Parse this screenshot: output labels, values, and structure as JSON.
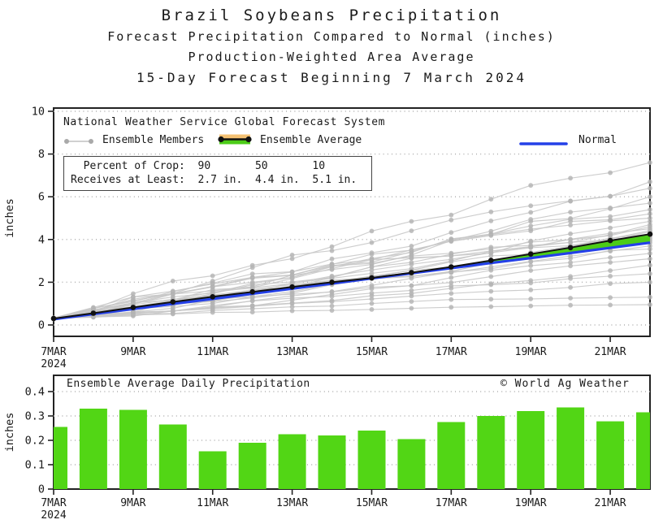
{
  "titles": {
    "line1": "Brazil Soybeans Precipitation",
    "line2": "Forecast Precipitation Compared to Normal (inches)",
    "line3": "Production-Weighted Area Average",
    "line4": "15-Day Forecast Beginning 7 March 2024"
  },
  "legend": {
    "source_line": "National Weather Service Global Forecast System",
    "entries": [
      {
        "label": "Ensemble Members",
        "swatch": "gray-line-with-dots"
      },
      {
        "label": "Ensemble Average",
        "swatch": "black-line-orange-above-green-below"
      },
      {
        "label": "Normal",
        "swatch": "blue-line"
      }
    ]
  },
  "crop_box": {
    "line1": "  Percent of Crop:  90       50       10",
    "line2": "Receives at Least:  2.7 in.  4.4 in.  5.1 in."
  },
  "colors": {
    "bar_green": "#52d615",
    "fill_green": "#4ccc18",
    "normal_blue": "#2440e8",
    "average_black": "#111111",
    "member_gray": "#c8c8c8",
    "member_dot_gray": "#b3b3b3",
    "legend_orange": "#f4c173",
    "grid_gray": "#b0b0b0",
    "axis_black": "#222222",
    "text": "#1a1a1a"
  },
  "chart_data": [
    {
      "type": "line",
      "title": "Forecast cumulative precipitation compared to normal",
      "ylabel": "inches",
      "ylim": [
        -0.55,
        10.15
      ],
      "y_ticks": [
        0,
        2,
        4,
        6,
        8,
        10
      ],
      "x_days": [
        "7MAR",
        "8MAR",
        "9MAR",
        "10MAR",
        "11MAR",
        "12MAR",
        "13MAR",
        "14MAR",
        "15MAR",
        "16MAR",
        "17MAR",
        "18MAR",
        "19MAR",
        "20MAR",
        "21MAR",
        "22MAR"
      ],
      "x_tick_labels": [
        {
          "day": 0,
          "label": "7MAR",
          "sublabel": "2024"
        },
        {
          "day": 2,
          "label": "9MAR"
        },
        {
          "day": 4,
          "label": "11MAR"
        },
        {
          "day": 6,
          "label": "13MAR"
        },
        {
          "day": 8,
          "label": "15MAR"
        },
        {
          "day": 10,
          "label": "17MAR"
        },
        {
          "day": 12,
          "label": "19MAR"
        },
        {
          "day": 14,
          "label": "21MAR"
        }
      ],
      "series": [
        {
          "name": "Ensemble Average",
          "values": [
            0.3,
            0.55,
            0.82,
            1.08,
            1.32,
            1.55,
            1.78,
            2.0,
            2.2,
            2.45,
            2.72,
            3.02,
            3.32,
            3.62,
            3.95,
            4.25
          ]
        },
        {
          "name": "Normal",
          "values": [
            0.27,
            0.51,
            0.75,
            0.99,
            1.22,
            1.46,
            1.7,
            1.94,
            2.18,
            2.42,
            2.66,
            2.9,
            3.13,
            3.37,
            3.61,
            3.85
          ]
        }
      ],
      "ensemble_members": {
        "name": "Ensemble Members",
        "count": 28,
        "start_value": 0.3,
        "end_values": [
          7.6,
          6.7,
          6.4,
          6.0,
          5.7,
          5.4,
          5.2,
          5.0,
          4.85,
          4.7,
          4.6,
          4.5,
          4.42,
          4.35,
          4.25,
          4.15,
          4.05,
          3.95,
          3.85,
          3.7,
          3.55,
          3.35,
          3.1,
          2.8,
          2.4,
          2.0,
          1.3,
          0.95
        ]
      },
      "legend_position": "top-left-inside",
      "grid": "horizontal-dotted"
    },
    {
      "type": "bar",
      "title": "Ensemble Average Daily Precipitation",
      "watermark": "© World Ag Weather",
      "ylabel": "inches",
      "ylim": [
        0,
        0.47
      ],
      "y_ticks": [
        0,
        0.1,
        0.2,
        0.3,
        0.4
      ],
      "categories": [
        "7MAR",
        "8MAR",
        "9MAR",
        "10MAR",
        "11MAR",
        "12MAR",
        "13MAR",
        "14MAR",
        "15MAR",
        "16MAR",
        "17MAR",
        "18MAR",
        "19MAR",
        "20MAR",
        "21MAR",
        "22MAR"
      ],
      "values": [
        0.255,
        0.33,
        0.325,
        0.265,
        0.155,
        0.19,
        0.225,
        0.22,
        0.24,
        0.205,
        0.275,
        0.3,
        0.32,
        0.335,
        0.278,
        0.315
      ],
      "x_tick_labels": [
        {
          "day": 0,
          "label": "7MAR",
          "sublabel": "2024"
        },
        {
          "day": 2,
          "label": "9MAR"
        },
        {
          "day": 4,
          "label": "11MAR"
        },
        {
          "day": 6,
          "label": "13MAR"
        },
        {
          "day": 8,
          "label": "15MAR"
        },
        {
          "day": 10,
          "label": "17MAR"
        },
        {
          "day": 12,
          "label": "19MAR"
        },
        {
          "day": 14,
          "label": "21MAR"
        }
      ],
      "grid": "horizontal-dotted"
    }
  ]
}
